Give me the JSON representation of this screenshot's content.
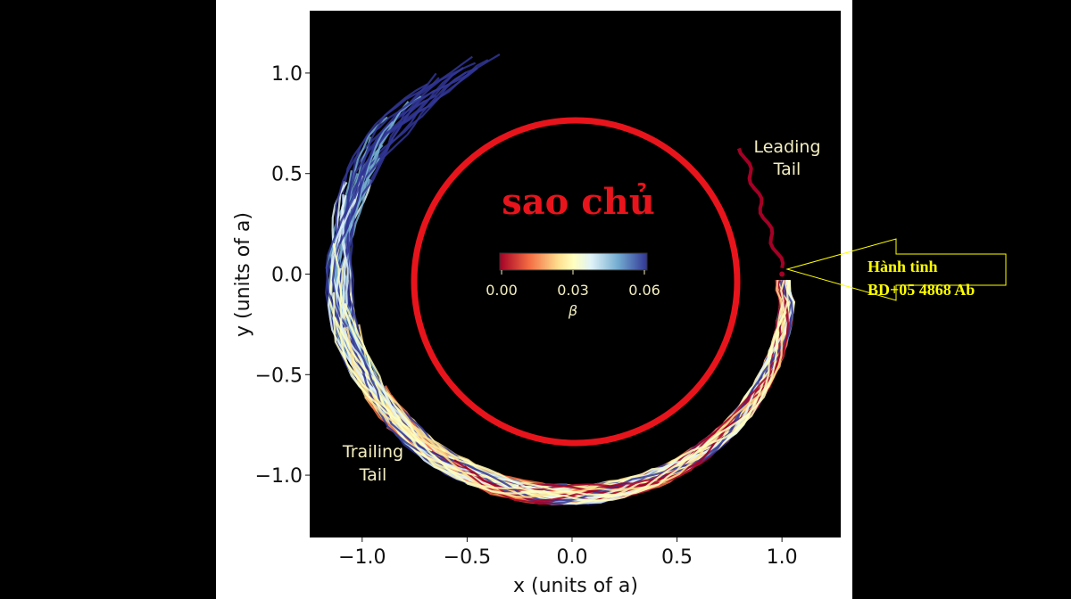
{
  "chart_data": {
    "type": "scatter",
    "xlabel": "x (units of a)",
    "ylabel": "y (units of a)",
    "xlim": [
      -1.25,
      1.28
    ],
    "ylim": [
      -1.31,
      1.31
    ],
    "xticks": [
      "−1.0",
      "−0.5",
      "0.0",
      "0.5",
      "1.0"
    ],
    "xtick_values": [
      -1.0,
      -0.5,
      0.0,
      0.5,
      1.0
    ],
    "yticks": [
      "1.0",
      "0.5",
      "0.0",
      "−0.5",
      "−1.0"
    ],
    "ytick_values": [
      1.0,
      0.5,
      0.0,
      -0.5,
      -1.0
    ],
    "background": "#000000",
    "grid": false,
    "colorbar": {
      "label": "β",
      "ticks": [
        "0.00",
        "0.03",
        "0.06"
      ],
      "range": [
        0.0,
        0.07
      ],
      "colors": [
        "#a50026",
        "#f46d43",
        "#fee090",
        "#ffffbf",
        "#e0f3f8",
        "#74add1",
        "#313695"
      ]
    },
    "annotations": {
      "leading_tail": [
        "Leading",
        "Tail"
      ],
      "trailing_tail": [
        "Trailing",
        "Tail"
      ]
    },
    "planet_position": [
      1.0,
      0.0
    ]
  },
  "overlay": {
    "host_star_label": "sao chủ",
    "host_star_circle_color": "#e8141c",
    "planet_callout": [
      "Hành tinh",
      "BD+05 4868 Ab"
    ],
    "callout_color": "#ffff00"
  }
}
